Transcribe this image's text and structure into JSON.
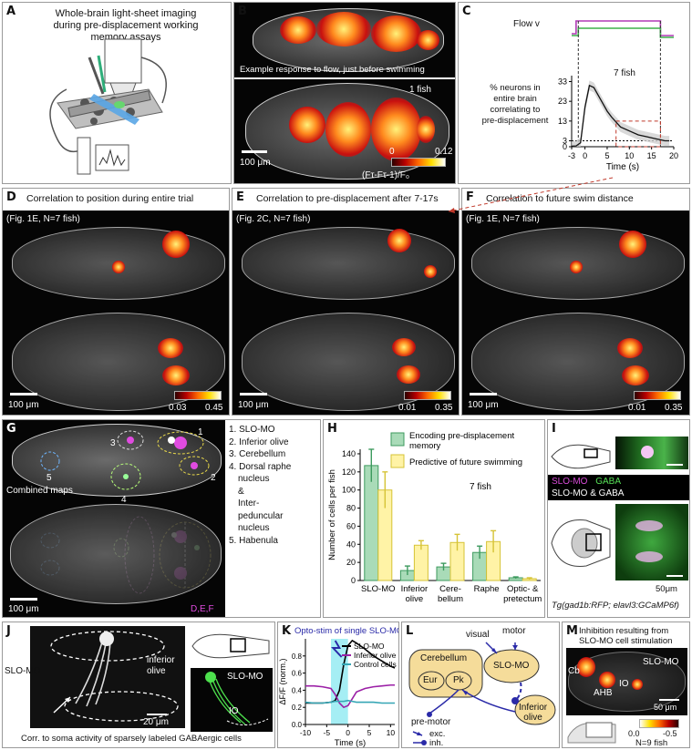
{
  "panel_a": {
    "letter": "A",
    "title_line1": "Whole-brain light-sheet imaging",
    "title_line2": "during pre-displacement working",
    "title_line3": "memory assays"
  },
  "panel_b": {
    "letter": "B",
    "caption": "Example response to flow, just before swimming",
    "count": "1 fish",
    "scale": "100 μm",
    "cbar_min": "0",
    "cbar_max": "0.12",
    "cbar_label": "(Fτ-Fτ-1)/F₀"
  },
  "panel_c": {
    "letter": "C",
    "flow_label": "Flow v",
    "count": "7 fish",
    "ylabel_1": "% neurons in",
    "ylabel_2": "entire brain",
    "ylabel_3": "correlating to",
    "ylabel_4": "pre-displacement",
    "xlabel": "Time (s)"
  },
  "panel_d": {
    "letter": "D",
    "title": "Correlation to position during entire trial",
    "ref": "(Fig. 1E, N=7 fish)",
    "scale": "100 μm",
    "cbar_min": "0.03",
    "cbar_max": "0.45"
  },
  "panel_e": {
    "letter": "E",
    "title": "Correlation to pre-displacement after 7-17s",
    "ref": "(Fig. 2C, N=7 fish)",
    "scale": "100 μm",
    "cbar_min": "0.01",
    "cbar_max": "0.35"
  },
  "panel_f": {
    "letter": "F",
    "title": "Correlation to future swim distance",
    "ref": "(Fig. 1E, N=7 fish)",
    "scale": "100 μm",
    "cbar_min": "0.01",
    "cbar_max": "0.35"
  },
  "panel_g": {
    "letter": "G",
    "caption": "Combined maps",
    "scale": "100 μm",
    "legend": "D,E,F",
    "n1": "1",
    "n2": "2",
    "n3": "3",
    "n4": "4",
    "n5": "5",
    "list": [
      "1. SLO-MO",
      "2. Inferior olive",
      "3. Cerebellum",
      "4. Dorsal raphe",
      "nucleus",
      "&",
      "Inter-",
      "peduncular",
      "nucleus",
      "5. Habenula"
    ]
  },
  "panel_h": {
    "letter": "H",
    "legend_1a": "Encoding pre-displacement",
    "legend_1b": "memory",
    "legend_2": "Predictive of future swimming",
    "count": "7 fish",
    "ylabel": "Number of cells per fish",
    "cat_1": "SLO-MO",
    "cat_2a": "Inferior",
    "cat_2b": "olive",
    "cat_3a": "Cere-",
    "cat_3b": "bellum",
    "cat_4": "Raphe",
    "cat_5a": "Optic- &",
    "cat_5b": "pretectum"
  },
  "panel_i": {
    "letter": "I",
    "leg_1": "SLO-MO",
    "leg_2": "GABA",
    "leg_3": "SLO-MO & GABA",
    "scale": "50μm",
    "genotype": "Tg(gad1b:RFP; elavl3:GCaMP6f)"
  },
  "panel_j": {
    "letter": "J",
    "label_slomo": "SLO-MO",
    "label_io_1": "inferior",
    "label_io_2": "olive",
    "scale": "20 μm",
    "inset_slomo": "SLO-MO",
    "inset_io": "IO",
    "caption": "Corr. to soma activity of sparsely labeled GABAergic cells"
  },
  "panel_k": {
    "letter": "K",
    "title": "Opto-stim of single SLO-MO neurons",
    "ylabel": "ΔF/F (norm.)",
    "xlabel": "Time (s)"
  },
  "panel_l": {
    "letter": "L",
    "visual": "visual",
    "motor": "motor",
    "cerebellum": "Cerebellum",
    "eur": "Eur",
    "pk": "Pk",
    "slomo": "SLO-MO",
    "io_1": "Inferior",
    "io_2": "olive",
    "premotor": "pre-motor",
    "exc": "exc.",
    "inh": "inh."
  },
  "panel_m": {
    "letter": "M",
    "title_1": "Inhibition resulting from",
    "title_2": "SLO-MO cell stimulation",
    "cb": "Cb",
    "slomo": "SLO-MO",
    "ahb": "AHB",
    "io": "IO",
    "scale": "50 μm",
    "cbar_min": "0.0",
    "cbar_max": "-0.5",
    "count": "N=9 fish"
  },
  "chart_data": [
    {
      "type": "line",
      "panel": "C",
      "x": [
        -3,
        -2,
        -1,
        0,
        1,
        2,
        3,
        4,
        5,
        6,
        8,
        10,
        12,
        14,
        16,
        17,
        18,
        19
      ],
      "series": [
        {
          "values": [
            0.3,
            0.4,
            2,
            20,
            31,
            30,
            26,
            22,
            18,
            15,
            10,
            8,
            6,
            5,
            4,
            3.5,
            3,
            3
          ]
        }
      ],
      "xlabel": "Time (s)",
      "xticks": [
        -3,
        0,
        5,
        10,
        15,
        20
      ],
      "yticks": [
        0,
        3,
        13,
        23,
        33
      ],
      "xlim": [
        -3,
        20
      ],
      "ylim": [
        0,
        36
      ]
    },
    {
      "type": "bar",
      "panel": "H",
      "categories": [
        "SLO-MO",
        "Inferior olive",
        "Cerebellum",
        "Raphe",
        "Optic- & pretectum"
      ],
      "series": [
        {
          "name": "Encoding pre-displacement memory",
          "values": [
            127,
            11,
            15,
            31,
            3
          ],
          "errors": [
            18,
            5,
            4,
            7,
            1
          ],
          "color": "#a9dbb8"
        },
        {
          "name": "Predictive of future swimming",
          "values": [
            100,
            39,
            42,
            43,
            2
          ],
          "errors": [
            20,
            5,
            9,
            12,
            1
          ],
          "color": "#fff3a6"
        }
      ],
      "ylabel": "Number of cells per fish",
      "yticks": [
        0,
        20,
        40,
        60,
        80,
        100,
        120,
        140
      ],
      "ylim": [
        0,
        145
      ]
    },
    {
      "type": "line",
      "panel": "K",
      "x": [
        -10,
        -8,
        -6,
        -4,
        -3,
        -2,
        -1,
        0,
        1,
        2,
        4,
        6,
        8,
        10,
        11
      ],
      "series": [
        {
          "name": "SLO-MO",
          "color": "#000000",
          "values": [
            0.25,
            0.25,
            0.25,
            0.26,
            0.28,
            0.4,
            0.7,
            0.92,
            0.98,
            0.95,
            0.88,
            0.8,
            0.74,
            0.68,
            0.66
          ]
        },
        {
          "name": "Inferior olive",
          "color": "#9b1fa6",
          "values": [
            0.45,
            0.45,
            0.44,
            0.42,
            0.35,
            0.25,
            0.2,
            0.22,
            0.3,
            0.38,
            0.42,
            0.44,
            0.45,
            0.46,
            0.46
          ]
        },
        {
          "name": "Control cells",
          "color": "#35a6b5",
          "values": [
            0.26,
            0.25,
            0.25,
            0.26,
            0.27,
            0.27,
            0.27,
            0.28,
            0.27,
            0.26,
            0.26,
            0.26,
            0.25,
            0.25,
            0.25
          ]
        }
      ],
      "xlabel": "Time (s)",
      "ylabel": "ΔF/F (norm.)",
      "xticks": [
        -10,
        -5,
        0,
        5,
        10
      ],
      "yticks": [
        0.0,
        0.2,
        0.4,
        0.6,
        0.8
      ],
      "xlim": [
        -10,
        11
      ],
      "ylim": [
        0,
        1.0
      ]
    }
  ]
}
